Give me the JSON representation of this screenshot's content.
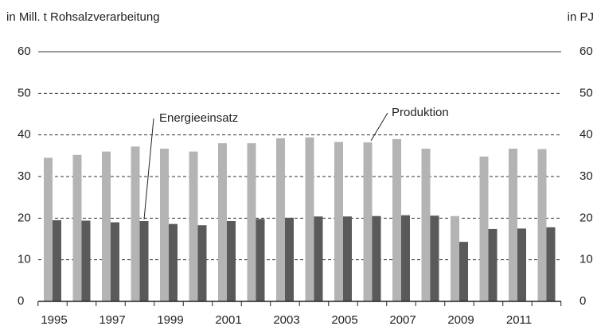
{
  "chart_data": {
    "type": "bar",
    "ylabel": "in Mill. t Rohsalzverarbeitung",
    "y2label": "in PJ",
    "categories": [
      "1995",
      null,
      "1997",
      null,
      "1999",
      null,
      "2001",
      null,
      "2003",
      null,
      "2005",
      null,
      "2007",
      null,
      "2009",
      null,
      "2011",
      null
    ],
    "series": [
      {
        "name": "Produktion",
        "color": "#b4b4b4",
        "values": [
          34.5,
          35.2,
          36,
          37.2,
          36.7,
          36,
          38,
          38,
          39.2,
          39.4,
          38.3,
          38.2,
          39,
          36.7,
          20.5,
          34.8,
          36.7,
          36.6
        ]
      },
      {
        "name": "Energieeinsatz",
        "color": "#5a5a5a",
        "axis": "y2",
        "values": [
          19.5,
          19.4,
          19,
          19.3,
          18.6,
          18.3,
          19.3,
          19.8,
          20.1,
          20.4,
          20.4,
          20.5,
          20.7,
          20.6,
          14.3,
          17.4,
          17.5,
          17.8
        ]
      }
    ],
    "ylim": [
      0,
      60
    ],
    "yticks": [
      0,
      10,
      20,
      30,
      40,
      50,
      60
    ],
    "y2lim": [
      0,
      60
    ],
    "y2ticks": [
      0,
      10,
      20,
      30,
      40,
      50,
      60
    ],
    "grid": true
  }
}
